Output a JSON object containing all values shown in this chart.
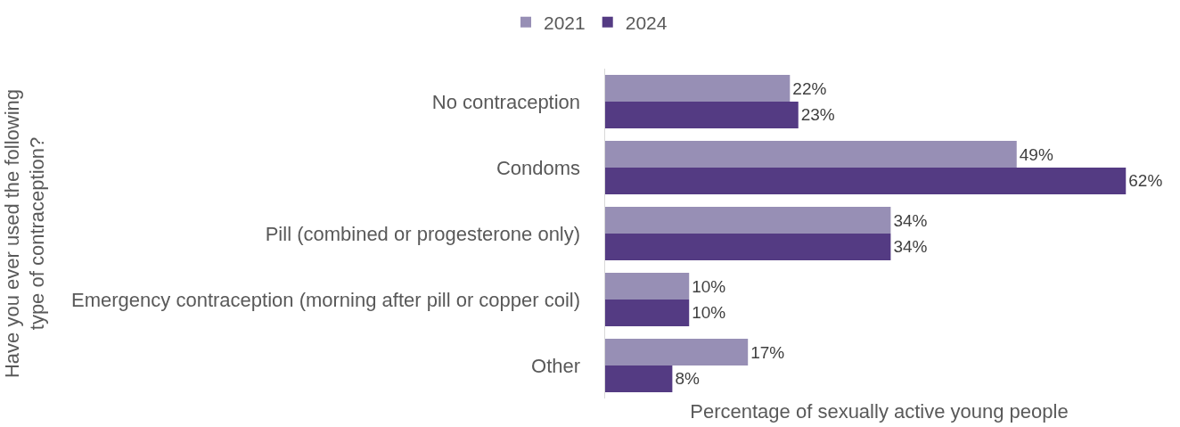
{
  "chart_data": {
    "type": "bar",
    "orientation": "horizontal",
    "xlabel": "Percentage of sexually active young people",
    "ylabel": "Have you ever used the following type of contraception?",
    "categories": [
      "No contraception",
      "Condoms",
      "Pill (combined or progesterone only)",
      "Emergency contraception (morning after pill or copper coil)",
      "Other"
    ],
    "series": [
      {
        "name": "2021",
        "color": "#978fb5",
        "values": [
          22,
          49,
          34,
          10,
          17
        ],
        "value_labels": [
          "22%",
          "49%",
          "34%",
          "10%",
          "17%"
        ]
      },
      {
        "name": "2024",
        "color": "#543b83",
        "values": [
          23,
          62,
          34,
          10,
          8
        ],
        "value_labels": [
          "23%",
          "62%",
          "34%",
          "10%",
          "8%"
        ]
      }
    ],
    "legend": "top",
    "tick_labels": "y"
  }
}
